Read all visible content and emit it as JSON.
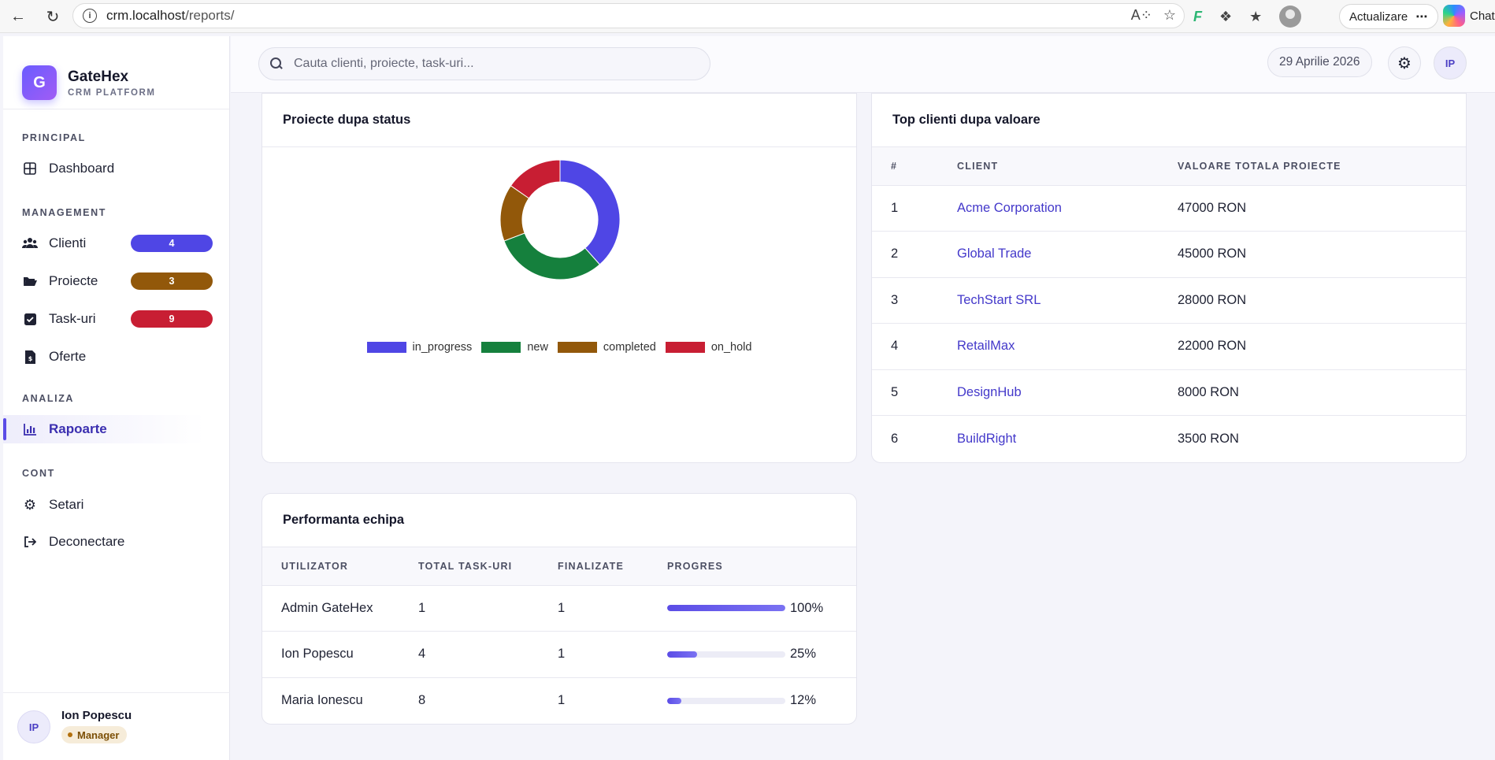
{
  "browser": {
    "url_host": "crm.localhost",
    "url_path": "/reports/",
    "update_label": "Actualizare",
    "chat_label": "Chat"
  },
  "brand": {
    "logo_letter": "G",
    "name": "GateHex",
    "subtitle": "CRM PLATFORM"
  },
  "sidebar": {
    "sections": {
      "principal": "PRINCIPAL",
      "management": "MANAGEMENT",
      "analiza": "ANALIZA",
      "cont": "CONT"
    },
    "items": {
      "dashboard": "Dashboard",
      "clienti": "Clienti",
      "proiecte": "Proiecte",
      "taskuri": "Task-uri",
      "oferte": "Oferte",
      "rapoarte": "Rapoarte",
      "setari": "Setari",
      "deconectare": "Deconectare"
    },
    "badges": {
      "clienti": "4",
      "proiecte": "3",
      "taskuri": "9"
    },
    "badge_colors": {
      "clienti": "#4f46e5",
      "proiecte": "#92580a",
      "taskuri": "#c81e33"
    },
    "user": {
      "initials": "IP",
      "name": "Ion Popescu",
      "role": "Manager"
    }
  },
  "topbar": {
    "search_placeholder": "Cauta clienti, proiecte, task-uri...",
    "date": "29 Aprilie 2026",
    "avatar_initials": "IP"
  },
  "status_card": {
    "title": "Proiecte dupa status"
  },
  "chart_data": {
    "type": "pie",
    "categories": [
      "in_progress",
      "new",
      "completed",
      "on_hold"
    ],
    "values": [
      5,
      4,
      2,
      2
    ],
    "colors": [
      "#4f46e5",
      "#15803d",
      "#92580a",
      "#c81e33"
    ],
    "title": "",
    "legend": "bottom"
  },
  "top_clients": {
    "title": "Top clienti dupa valoare",
    "headers": [
      "#",
      "CLIENT",
      "VALOARE TOTALA PROIECTE"
    ],
    "rows": [
      {
        "rank": "1",
        "client": "Acme Corporation",
        "value": "47000 RON"
      },
      {
        "rank": "2",
        "client": "Global Trade",
        "value": "45000 RON"
      },
      {
        "rank": "3",
        "client": "TechStart SRL",
        "value": "28000 RON"
      },
      {
        "rank": "4",
        "client": "RetailMax",
        "value": "22000 RON"
      },
      {
        "rank": "5",
        "client": "DesignHub",
        "value": "8000 RON"
      },
      {
        "rank": "6",
        "client": "BuildRight",
        "value": "3500 RON"
      }
    ]
  },
  "team": {
    "title": "Performanta echipa",
    "headers": [
      "UTILIZATOR",
      "TOTAL TASK-URI",
      "FINALIZATE",
      "PROGRES"
    ],
    "rows": [
      {
        "user": "Admin GateHex",
        "total": "1",
        "done": "1",
        "progress_label": "100%",
        "progress": 100
      },
      {
        "user": "Ion Popescu",
        "total": "4",
        "done": "1",
        "progress_label": "25%",
        "progress": 25
      },
      {
        "user": "Maria Ionescu",
        "total": "8",
        "done": "1",
        "progress_label": "12%",
        "progress": 12
      }
    ]
  }
}
